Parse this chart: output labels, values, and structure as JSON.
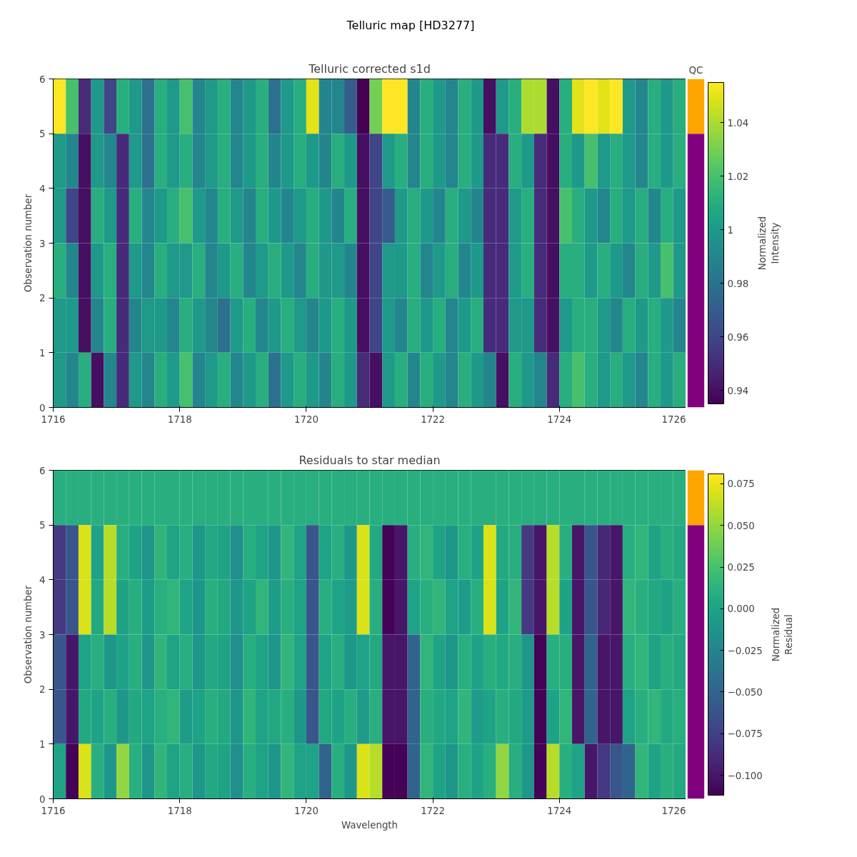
{
  "chart_data": [
    {
      "type": "other",
      "title": "Telluric map [HD3277]"
    },
    {
      "type": "heatmap",
      "title": "Telluric corrected s1d",
      "ylabel": "Observation number",
      "clabel": "Normalized\nIntensity",
      "x": [
        1716.1,
        1716.3,
        1716.5,
        1716.7,
        1716.9,
        1717.1,
        1717.3,
        1717.5,
        1717.7,
        1717.9,
        1718.1,
        1718.3,
        1718.5,
        1718.7,
        1718.9,
        1719.1,
        1719.3,
        1719.5,
        1719.7,
        1719.9,
        1720.1,
        1720.3,
        1720.5,
        1720.7,
        1720.9,
        1721.1,
        1721.3,
        1721.5,
        1721.7,
        1721.9,
        1722.1,
        1722.3,
        1722.5,
        1722.7,
        1722.9,
        1723.1,
        1723.3,
        1723.5,
        1723.7,
        1723.9,
        1724.1,
        1724.3,
        1724.5,
        1724.7,
        1724.9,
        1725.1,
        1725.3,
        1725.5,
        1725.7,
        1725.9
      ],
      "xlim": [
        1716,
        1726
      ],
      "xticks": [
        1716,
        1718,
        1720,
        1722,
        1724,
        1726
      ],
      "ylim": [
        0,
        6
      ],
      "yticks": [
        0,
        1,
        2,
        3,
        4,
        5,
        6
      ],
      "clim": [
        0.935,
        1.055
      ],
      "cticks": [
        0.94,
        0.96,
        0.98,
        1.0,
        1.02,
        1.04
      ],
      "cells": [
        [
          1.055,
          1.02,
          0.95,
          1.0,
          0.96,
          1.01,
          1.0,
          0.98,
          1.01,
          1.0,
          1.02,
          0.99,
          1.0,
          1.01,
          0.99,
          1.0,
          1.01,
          0.98,
          1.0,
          1.01,
          1.05,
          0.99,
          0.99,
          0.97,
          0.935,
          1.03,
          1.055,
          1.055,
          0.99,
          1.01,
          1.0,
          0.99,
          1.01,
          1.0,
          0.94,
          1.0,
          1.01,
          1.04,
          1.04,
          0.94,
          1.01,
          1.05,
          1.055,
          1.05,
          1.055,
          1.0,
          0.99,
          1.01,
          1.0,
          1.01
        ],
        [
          1.0,
          0.99,
          0.94,
          1.0,
          0.99,
          0.95,
          1.0,
          0.98,
          1.01,
          1.0,
          1.01,
          0.99,
          1.0,
          1.01,
          0.99,
          1.0,
          1.01,
          0.99,
          1.0,
          1.01,
          1.0,
          0.99,
          1.01,
          1.0,
          0.94,
          0.96,
          1.0,
          1.01,
          0.99,
          1.01,
          1.0,
          0.99,
          1.01,
          1.0,
          0.95,
          0.95,
          1.01,
          1.0,
          0.95,
          0.94,
          1.01,
          1.0,
          1.02,
          1.0,
          1.01,
          1.0,
          0.99,
          1.01,
          1.0,
          1.01
        ],
        [
          1.0,
          0.96,
          0.94,
          1.01,
          1.0,
          0.95,
          1.01,
          0.99,
          1.0,
          1.01,
          1.02,
          1.0,
          0.99,
          1.01,
          1.0,
          0.99,
          1.01,
          1.0,
          0.99,
          1.0,
          1.01,
          1.0,
          0.99,
          1.01,
          0.94,
          0.96,
          0.97,
          1.0,
          1.01,
          1.0,
          0.99,
          1.01,
          1.0,
          0.99,
          0.95,
          0.95,
          1.0,
          1.01,
          0.95,
          0.94,
          1.02,
          1.01,
          1.0,
          0.99,
          1.01,
          1.0,
          1.01,
          0.99,
          1.01,
          1.0
        ],
        [
          1.01,
          0.99,
          0.94,
          1.0,
          1.01,
          0.95,
          1.0,
          0.99,
          1.01,
          1.0,
          1.0,
          1.01,
          0.99,
          1.0,
          1.01,
          0.99,
          1.0,
          1.01,
          1.0,
          0.99,
          1.01,
          1.0,
          1.0,
          0.99,
          0.94,
          0.96,
          1.0,
          1.0,
          1.01,
          0.99,
          1.0,
          1.01,
          0.99,
          1.0,
          0.95,
          0.95,
          1.0,
          1.01,
          0.95,
          0.94,
          1.01,
          1.01,
          1.0,
          1.01,
          1.0,
          0.99,
          1.01,
          1.0,
          1.02,
          1.0
        ],
        [
          1.0,
          1.0,
          0.94,
          0.99,
          1.01,
          0.95,
          0.99,
          1.0,
          1.0,
          0.99,
          1.01,
          1.0,
          0.99,
          0.98,
          1.0,
          1.01,
          0.99,
          1.0,
          1.01,
          1.0,
          0.99,
          1.0,
          1.01,
          1.0,
          0.94,
          0.96,
          1.0,
          0.99,
          1.01,
          1.0,
          1.01,
          0.99,
          1.0,
          1.01,
          0.95,
          0.95,
          1.0,
          1.0,
          0.95,
          0.94,
          1.0,
          1.01,
          1.01,
          1.0,
          0.99,
          1.01,
          1.0,
          1.01,
          1.0,
          0.99
        ],
        [
          1.0,
          0.99,
          1.01,
          0.94,
          0.99,
          0.95,
          1.0,
          0.99,
          1.01,
          1.0,
          1.02,
          0.99,
          1.0,
          1.01,
          0.99,
          1.0,
          1.01,
          0.98,
          1.0,
          1.01,
          1.0,
          0.99,
          1.01,
          1.0,
          0.95,
          0.94,
          1.0,
          1.01,
          0.99,
          1.01,
          1.0,
          0.99,
          1.01,
          1.0,
          0.99,
          0.94,
          1.01,
          1.0,
          0.99,
          0.95,
          1.01,
          1.02,
          1.01,
          1.0,
          1.01,
          1.0,
          0.99,
          1.01,
          1.0,
          1.01
        ]
      ]
    },
    {
      "type": "bar",
      "title": "QC",
      "stacked": true,
      "categories": [
        null
      ],
      "ylim": [
        0,
        6
      ],
      "tick_labels": false,
      "series": [
        {
          "color": "#800080",
          "values": [
            5
          ]
        },
        {
          "color": "#ffa500",
          "values": [
            1
          ]
        }
      ]
    },
    {
      "type": "heatmap",
      "title": "Residuals to star median",
      "xlabel": "Wavelength",
      "ylabel": "Observation number",
      "clabel": "Normalized\nResidual",
      "x": [
        1716.1,
        1716.3,
        1716.5,
        1716.7,
        1716.9,
        1717.1,
        1717.3,
        1717.5,
        1717.7,
        1717.9,
        1718.1,
        1718.3,
        1718.5,
        1718.7,
        1718.9,
        1719.1,
        1719.3,
        1719.5,
        1719.7,
        1719.9,
        1720.1,
        1720.3,
        1720.5,
        1720.7,
        1720.9,
        1721.1,
        1721.3,
        1721.5,
        1721.7,
        1721.9,
        1722.1,
        1722.3,
        1722.5,
        1722.7,
        1722.9,
        1723.1,
        1723.3,
        1723.5,
        1723.7,
        1723.9,
        1724.1,
        1724.3,
        1724.5,
        1724.7,
        1724.9,
        1725.1,
        1725.3,
        1725.5,
        1725.7,
        1725.9
      ],
      "xlim": [
        1716,
        1726
      ],
      "xticks": [
        1716,
        1718,
        1720,
        1722,
        1724,
        1726
      ],
      "ylim": [
        0,
        6
      ],
      "yticks": [
        0,
        1,
        2,
        3,
        4,
        5,
        6
      ],
      "clim": [
        -0.112,
        0.081
      ],
      "cticks": [
        {
          "value": -0.1,
          "label": "−0.100"
        },
        {
          "value": -0.075,
          "label": "−0.075"
        },
        {
          "value": -0.05,
          "label": "−0.050"
        },
        {
          "value": -0.025,
          "label": "−0.025"
        },
        {
          "value": 0,
          "label": "0.000"
        },
        {
          "value": 0.025,
          "label": "0.025"
        },
        {
          "value": 0.05,
          "label": "0.050"
        },
        {
          "value": 0.075,
          "label": "0.075"
        }
      ],
      "cells": [
        [
          0.01,
          0.01,
          0.01,
          0.01,
          0.01,
          0.01,
          0.01,
          0.01,
          0.01,
          0.01,
          0.01,
          0.01,
          0.01,
          0.01,
          0.01,
          0.01,
          0.01,
          0.01,
          0.01,
          0.01,
          0.01,
          0.01,
          0.01,
          0.01,
          0.01,
          0.01,
          0.01,
          0.01,
          0.01,
          0.01,
          0.01,
          0.01,
          0.01,
          0.01,
          0.01,
          0.01,
          0.01,
          0.01,
          0.01,
          0.01,
          0.01,
          0.01,
          0.01,
          0.01,
          0.01,
          0.01,
          0.01,
          0.01,
          0.01,
          0.01
        ],
        [
          -0.08,
          -0.06,
          0.07,
          0.0,
          0.06,
          0.01,
          0.0,
          -0.01,
          0.015,
          0.0,
          0.01,
          -0.01,
          0.005,
          0.0,
          -0.015,
          0.01,
          0.0,
          -0.01,
          0.015,
          0.0,
          -0.06,
          0.0,
          0.01,
          -0.01,
          0.07,
          0.005,
          -0.11,
          -0.1,
          0.01,
          0.015,
          0.0,
          -0.01,
          0.01,
          0.0,
          0.07,
          0.005,
          0.01,
          -0.08,
          -0.1,
          0.06,
          0.01,
          -0.1,
          -0.06,
          -0.09,
          -0.1,
          0.01,
          0.015,
          0.0,
          0.01,
          0.005
        ],
        [
          -0.08,
          -0.06,
          0.07,
          0.005,
          0.06,
          0.0,
          0.01,
          -0.005,
          0.01,
          0.015,
          0.0,
          -0.01,
          0.01,
          0.005,
          -0.01,
          0.0,
          0.015,
          -0.005,
          0.01,
          0.0,
          -0.06,
          0.01,
          0.0,
          -0.005,
          0.07,
          0.01,
          -0.11,
          -0.1,
          0.0,
          0.01,
          0.015,
          0.0,
          -0.005,
          0.01,
          0.07,
          0.0,
          0.015,
          -0.08,
          -0.1,
          0.06,
          0.0,
          -0.1,
          -0.06,
          -0.09,
          -0.1,
          0.015,
          0.01,
          0.005,
          0.0,
          0.01
        ],
        [
          -0.06,
          -0.1,
          0.0,
          0.01,
          -0.01,
          0.0,
          0.01,
          -0.01,
          0.015,
          0.0,
          0.01,
          -0.01,
          0.005,
          0.0,
          -0.015,
          0.01,
          0.0,
          -0.01,
          0.015,
          0.0,
          -0.06,
          0.0,
          0.01,
          -0.01,
          0.0,
          0.005,
          -0.1,
          -0.1,
          -0.05,
          0.015,
          0.0,
          -0.01,
          0.01,
          0.0,
          0.01,
          0.005,
          0.01,
          -0.01,
          -0.11,
          0.01,
          0.01,
          -0.1,
          -0.05,
          -0.1,
          -0.1,
          0.01,
          0.015,
          0.0,
          0.01,
          0.005
        ],
        [
          -0.06,
          -0.1,
          0.005,
          0.0,
          0.01,
          -0.01,
          0.005,
          0.0,
          0.01,
          0.015,
          -0.005,
          0.0,
          0.01,
          0.005,
          -0.01,
          0.015,
          0.0,
          0.005,
          0.01,
          -0.01,
          -0.06,
          0.005,
          0.0,
          0.01,
          -0.005,
          0.01,
          -0.1,
          -0.1,
          -0.05,
          0.01,
          0.005,
          0.0,
          0.015,
          -0.005,
          0.0,
          0.01,
          0.005,
          -0.005,
          -0.11,
          0.0,
          0.015,
          -0.1,
          -0.05,
          -0.1,
          -0.1,
          0.0,
          0.01,
          0.015,
          0.005,
          0.01
        ],
        [
          0.0,
          -0.11,
          0.07,
          0.01,
          -0.01,
          0.05,
          0.01,
          -0.01,
          0.015,
          0.0,
          0.01,
          -0.01,
          0.005,
          0.0,
          -0.015,
          0.01,
          0.0,
          -0.01,
          0.015,
          0.0,
          0.0,
          -0.05,
          0.01,
          -0.01,
          0.07,
          0.06,
          -0.11,
          -0.11,
          -0.05,
          0.015,
          0.0,
          -0.01,
          0.01,
          0.0,
          0.01,
          0.05,
          0.01,
          -0.01,
          -0.11,
          0.06,
          0.01,
          0.0,
          -0.1,
          -0.08,
          -0.06,
          -0.05,
          0.015,
          0.0,
          0.01,
          0.005
        ]
      ]
    },
    {
      "type": "bar",
      "stacked": true,
      "categories": [
        null
      ],
      "ylim": [
        0,
        6
      ],
      "tick_labels": false,
      "series": [
        {
          "color": "#800080",
          "values": [
            5
          ]
        },
        {
          "color": "#ffa500",
          "values": [
            1
          ]
        }
      ]
    }
  ]
}
